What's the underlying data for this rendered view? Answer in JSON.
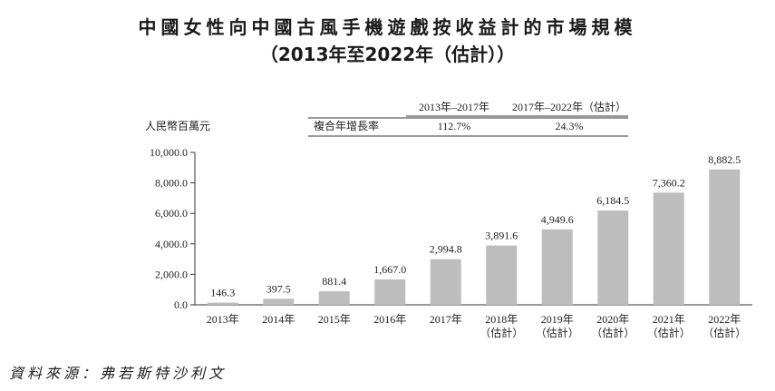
{
  "title_line1": "中國女性向中國古風手機遊戲按收益計的市場規模",
  "title_line2": "（2013年至2022年（估計））",
  "source": "資料來源：弗若斯特沙利文",
  "cagr_table": {
    "headers": [
      "2013年–2017年",
      "2017年–2022年（估計）"
    ],
    "row_label": "複合年增長率",
    "values": [
      "112.7%",
      "24.3%"
    ]
  },
  "chart_data": {
    "type": "bar",
    "title": "中國女性向中國古風手機遊戲按收益計的市場規模",
    "ylabel": "人民幣百萬元",
    "xlabel": "",
    "ylim": [
      0,
      10000
    ],
    "yticks": [
      "0.0",
      "2,000.0",
      "4,000.0",
      "6,000.0",
      "8,000.0",
      "10,000.0"
    ],
    "ytick_values": [
      0,
      2000,
      4000,
      6000,
      8000,
      10000
    ],
    "grid": false,
    "bar_color": "#bdbdbd",
    "categories": [
      {
        "year": "2013年",
        "est": ""
      },
      {
        "year": "2014年",
        "est": ""
      },
      {
        "year": "2015年",
        "est": ""
      },
      {
        "year": "2016年",
        "est": ""
      },
      {
        "year": "2017年",
        "est": ""
      },
      {
        "year": "2018年",
        "est": "（估計）"
      },
      {
        "year": "2019年",
        "est": "（估計）"
      },
      {
        "year": "2020年",
        "est": "（估計）"
      },
      {
        "year": "2021年",
        "est": "（估計）"
      },
      {
        "year": "2022年",
        "est": "（估計）"
      }
    ],
    "values": [
      146.3,
      397.5,
      881.4,
      1667.0,
      2994.8,
      3891.6,
      4949.6,
      6184.5,
      7360.2,
      8882.5
    ],
    "value_labels": [
      "146.3",
      "397.5",
      "881.4",
      "1,667.0",
      "2,994.8",
      "3,891.6",
      "4,949.6",
      "6,184.5",
      "7,360.2",
      "8,882.5"
    ]
  }
}
